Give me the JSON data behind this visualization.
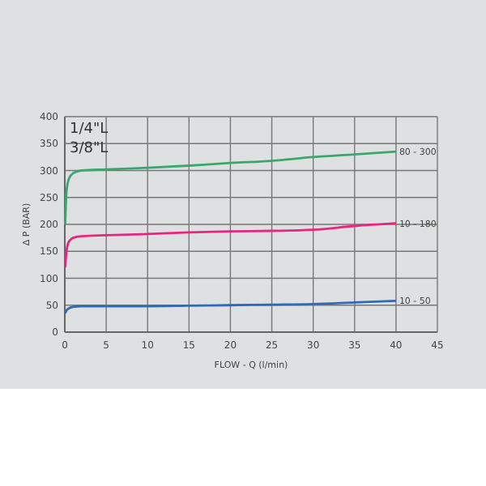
{
  "chart_data": {
    "type": "line",
    "title": "1/4\"L",
    "subtitle": "3/8\"L",
    "xlabel": "FLOW - Q (l/min)",
    "ylabel": "Δ P (BAR)",
    "xlim": [
      0,
      45
    ],
    "xticks": [
      0,
      5,
      10,
      15,
      20,
      25,
      30,
      35,
      40,
      45
    ],
    "ylim": [
      0,
      400
    ],
    "yticks": [
      0,
      50,
      100,
      150,
      200,
      250,
      300,
      350,
      400
    ],
    "grid": true,
    "marker": "none",
    "line_style": "solid",
    "series": [
      {
        "name": "80 - 300",
        "color": "#3aa76d",
        "x": [
          0.05,
          0.2,
          0.5,
          1,
          2,
          5,
          10,
          15,
          20,
          25,
          30,
          35,
          40
        ],
        "values": [
          200,
          260,
          285,
          295,
          300,
          302,
          305,
          309,
          314,
          318,
          325,
          330,
          335
        ]
      },
      {
        "name": "10 - 180",
        "color": "#e8267f",
        "x": [
          0.05,
          0.2,
          0.5,
          1,
          2,
          5,
          10,
          15,
          20,
          25,
          30,
          35,
          40
        ],
        "values": [
          120,
          150,
          168,
          175,
          178,
          180,
          182,
          185,
          187,
          188,
          190,
          197,
          202
        ]
      },
      {
        "name": "10 - 50",
        "color": "#2f6bb5",
        "x": [
          0.05,
          0.3,
          1,
          2,
          5,
          10,
          15,
          20,
          25,
          30,
          35,
          40
        ],
        "values": [
          35,
          42,
          47,
          48,
          48,
          48,
          49,
          50,
          51,
          52,
          55,
          58
        ]
      }
    ]
  }
}
